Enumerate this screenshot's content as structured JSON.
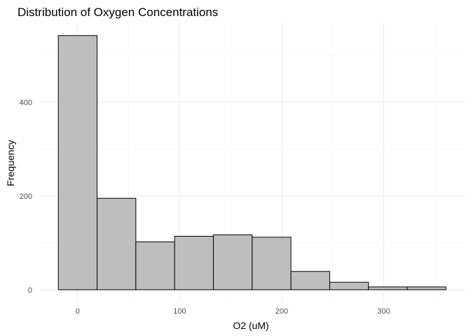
{
  "chart_data": {
    "type": "bar",
    "title": "Distribution of Oxygen Concentrations",
    "xlabel": "O2 (uM)",
    "ylabel": "Frequency",
    "bins": [
      {
        "x0": -19,
        "x1": 19,
        "count": 542
      },
      {
        "x0": 19,
        "x1": 57,
        "count": 195
      },
      {
        "x0": 57,
        "x1": 95,
        "count": 102
      },
      {
        "x0": 95,
        "x1": 133,
        "count": 114
      },
      {
        "x0": 133,
        "x1": 171,
        "count": 117
      },
      {
        "x0": 171,
        "x1": 209,
        "count": 112
      },
      {
        "x0": 209,
        "x1": 247,
        "count": 39
      },
      {
        "x0": 247,
        "x1": 285,
        "count": 16
      },
      {
        "x0": 285,
        "x1": 323,
        "count": 6
      },
      {
        "x0": 323,
        "x1": 361,
        "count": 6
      }
    ],
    "xlim": [
      -37,
      380
    ],
    "ylim": [
      -27,
      570
    ],
    "x_ticks": [
      0,
      100,
      200,
      300
    ],
    "y_ticks": [
      0,
      200,
      400
    ],
    "grid": true,
    "legend": "none",
    "colors": {
      "bar_fill": "#bebebe",
      "bar_stroke": "#000000",
      "grid_major": "#ebebeb",
      "grid_minor": "#f4f4f4"
    }
  }
}
